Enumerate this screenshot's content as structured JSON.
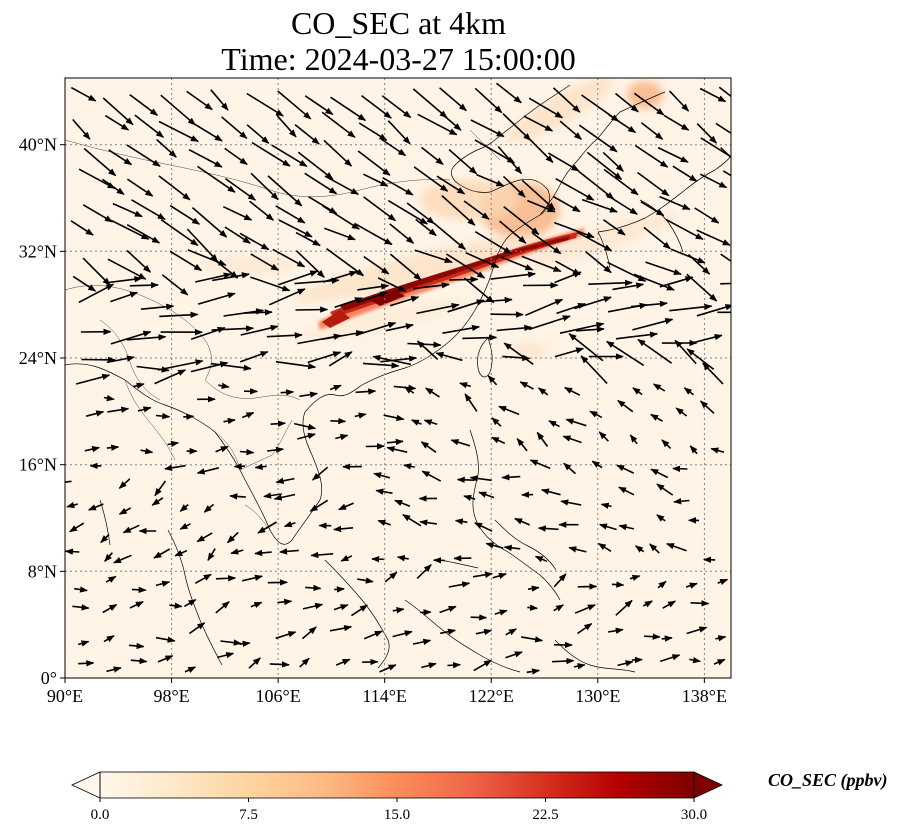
{
  "title_line1": "CO_SEC at 4km",
  "title_line2": "Time: 2024-03-27 15:00:00",
  "x_ticks": [
    {
      "lon": 90,
      "label": "90°E"
    },
    {
      "lon": 98,
      "label": "98°E"
    },
    {
      "lon": 106,
      "label": "106°E"
    },
    {
      "lon": 114,
      "label": "114°E"
    },
    {
      "lon": 122,
      "label": "122°E"
    },
    {
      "lon": 130,
      "label": "130°E"
    },
    {
      "lon": 138,
      "label": "138°E"
    }
  ],
  "y_ticks": [
    {
      "lat": 0,
      "label": "0°"
    },
    {
      "lat": 8,
      "label": "8°N"
    },
    {
      "lat": 16,
      "label": "16°N"
    },
    {
      "lat": 24,
      "label": "24°N"
    },
    {
      "lat": 32,
      "label": "32°N"
    },
    {
      "lat": 40,
      "label": "40°N"
    }
  ],
  "extent": {
    "lon_min": 90,
    "lon_max": 140,
    "lat_min": 0,
    "lat_max": 45
  },
  "colorbar": {
    "label": "CO_SEC (ppbv)",
    "min": 0,
    "max": 30,
    "ticks": [
      "0.0",
      "7.5",
      "15.0",
      "22.5",
      "30.0"
    ],
    "tick_values": [
      0,
      7.5,
      15,
      22.5,
      30
    ],
    "colormap": "OrRd",
    "colors": [
      "#fff7ec",
      "#fee8c8",
      "#fdd49e",
      "#fdbb84",
      "#fc8d59",
      "#ef6548",
      "#d7301f",
      "#b30000",
      "#7f0000"
    ]
  },
  "colors": {
    "grid": "#808080",
    "arrow": "#000000",
    "coast": "#000000"
  }
}
